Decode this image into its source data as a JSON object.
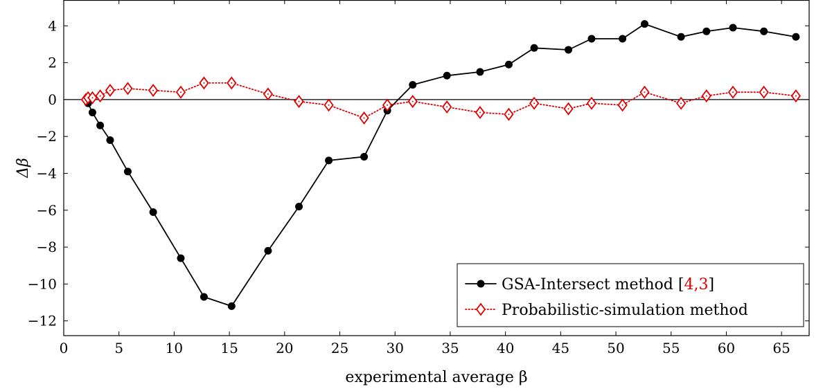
{
  "chart_data": {
    "type": "line",
    "title": "",
    "xlabel": "experimental average β",
    "ylabel": "Δβ",
    "xlim": [
      0,
      67.5
    ],
    "ylim": [
      -12.8,
      5.4
    ],
    "xticks": [
      0,
      5,
      10,
      15,
      20,
      25,
      30,
      35,
      40,
      45,
      50,
      55,
      60,
      65
    ],
    "yticks": [
      4,
      2,
      0,
      -2,
      -4,
      -6,
      -8,
      -10,
      -12
    ],
    "ytick_labels": [
      "4",
      "2",
      "0",
      "−2",
      "−4",
      "−6",
      "−8",
      "−10",
      "−12"
    ],
    "grid": false,
    "zero_line": true,
    "legend_position": "bottom-right",
    "series": [
      {
        "name": "GSA-Intersect method",
        "name_ref_open": " [",
        "name_ref": "4,3",
        "name_ref_close": "]",
        "color": "#000000",
        "marker": "filled-circle",
        "line_style": "solid",
        "x": [
          2.0,
          2.2,
          2.6,
          3.3,
          4.2,
          5.8,
          8.1,
          10.6,
          12.7,
          15.2,
          18.5,
          21.3,
          24.0,
          27.2,
          29.3,
          31.6,
          34.7,
          37.7,
          40.3,
          42.6,
          45.7,
          47.8,
          50.6,
          52.6,
          55.9,
          58.2,
          60.6,
          63.4,
          66.3
        ],
        "y": [
          0.0,
          -0.2,
          -0.7,
          -1.4,
          -2.2,
          -3.9,
          -6.1,
          -8.6,
          -10.7,
          -11.2,
          -8.2,
          -5.8,
          -3.3,
          -3.1,
          -0.6,
          0.8,
          1.3,
          1.5,
          1.9,
          2.8,
          2.7,
          3.3,
          3.3,
          4.1,
          3.4,
          3.7,
          3.9,
          3.7,
          3.4
        ]
      },
      {
        "name": "Probabilistic-simulation method",
        "color": "#e00000",
        "marker": "open-diamond",
        "line_style": "dotted",
        "x": [
          2.0,
          2.2,
          2.6,
          3.3,
          4.2,
          5.8,
          8.1,
          10.6,
          12.7,
          15.2,
          18.5,
          21.3,
          24.0,
          27.2,
          29.3,
          31.6,
          34.7,
          37.7,
          40.3,
          42.6,
          45.7,
          47.8,
          50.6,
          52.6,
          55.9,
          58.2,
          60.6,
          63.4,
          66.3
        ],
        "y": [
          0.0,
          0.1,
          0.1,
          0.2,
          0.5,
          0.6,
          0.5,
          0.4,
          0.9,
          0.9,
          0.3,
          -0.1,
          -0.3,
          -1.0,
          -0.3,
          -0.1,
          -0.4,
          -0.7,
          -0.8,
          -0.2,
          -0.5,
          -0.2,
          -0.3,
          0.4,
          -0.2,
          0.2,
          0.4,
          0.4,
          0.2
        ]
      }
    ]
  }
}
